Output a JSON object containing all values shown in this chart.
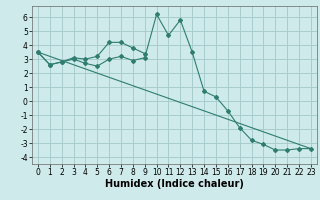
{
  "xlabel": "Humidex (Indice chaleur)",
  "bg_color": "#ceeaea",
  "grid_color": "#a8cccc",
  "line_color": "#2e7d6e",
  "xlim": [
    -0.5,
    23.5
  ],
  "ylim": [
    -4.5,
    6.8
  ],
  "xticks": [
    0,
    1,
    2,
    3,
    4,
    5,
    6,
    7,
    8,
    9,
    10,
    11,
    12,
    13,
    14,
    15,
    16,
    17,
    18,
    19,
    20,
    21,
    22,
    23
  ],
  "yticks": [
    -4,
    -3,
    -2,
    -1,
    0,
    1,
    2,
    3,
    4,
    5,
    6
  ],
  "line1_x": [
    0,
    1,
    2,
    3,
    4,
    5,
    6,
    7,
    8,
    9
  ],
  "line1_y": [
    3.5,
    2.6,
    2.8,
    3.1,
    3.0,
    3.2,
    4.2,
    4.2,
    3.8,
    3.4
  ],
  "line2_x": [
    0,
    1,
    2,
    3,
    4,
    5,
    6,
    7,
    8,
    9,
    10,
    11,
    12,
    13,
    14,
    15,
    16,
    17,
    18,
    19,
    20,
    21,
    22,
    23
  ],
  "line2_y": [
    3.5,
    2.6,
    2.8,
    3.0,
    2.7,
    2.5,
    3.0,
    3.2,
    2.9,
    3.1,
    6.2,
    4.7,
    5.8,
    3.5,
    0.7,
    0.3,
    -0.7,
    -1.9,
    -2.8,
    -3.1,
    -3.5,
    -3.5,
    -3.4,
    -3.4
  ],
  "line3_x": [
    0,
    23
  ],
  "line3_y": [
    3.5,
    -3.4
  ],
  "xlabel_fontsize": 7,
  "tick_fontsize": 5.5
}
